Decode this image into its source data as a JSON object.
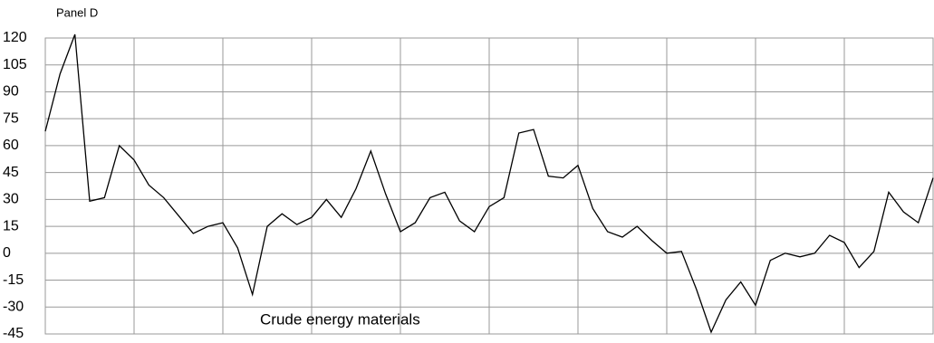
{
  "chart_data": {
    "type": "line",
    "title": "Panel D",
    "annotation": "Crude energy materials",
    "series": [
      {
        "color": "#000000",
        "values": [
          68,
          100,
          122,
          29,
          31,
          60,
          52,
          38,
          31,
          21,
          11,
          15,
          17,
          3,
          -23,
          15,
          22,
          16,
          20,
          30,
          20,
          36,
          57,
          33,
          12,
          17,
          31,
          34,
          18,
          12,
          26,
          31,
          67,
          69,
          43,
          42,
          49,
          25,
          12,
          9,
          15,
          7,
          0,
          1,
          -20,
          -44,
          -26,
          -16,
          -29,
          -4,
          0,
          -2,
          0,
          10,
          6,
          -8,
          1,
          34,
          23,
          17,
          42
        ]
      }
    ],
    "ylim": [
      -45,
      120
    ],
    "yticks": [
      -45,
      -30,
      -15,
      0,
      15,
      30,
      45,
      60,
      75,
      90,
      105,
      120
    ],
    "grid": true
  }
}
